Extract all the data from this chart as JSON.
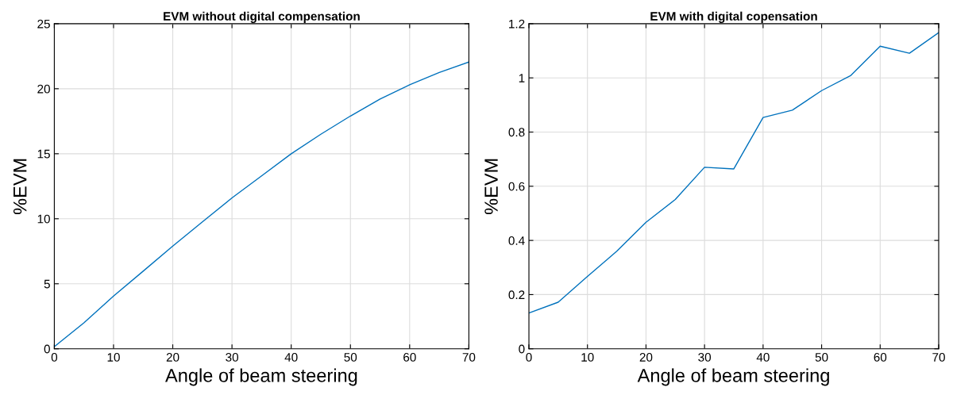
{
  "chart_data": [
    {
      "type": "line",
      "title": "EVM without digital compensation",
      "xlabel": "Angle of beam steering",
      "ylabel": "%EVM",
      "x": [
        0,
        5,
        10,
        15,
        20,
        25,
        30,
        35,
        40,
        45,
        50,
        55,
        60,
        65,
        70
      ],
      "series": [
        {
          "color": "#0072bd",
          "values": [
            0.17,
            2.0,
            4.05,
            5.97,
            7.9,
            9.76,
            11.6,
            13.3,
            15.0,
            16.5,
            17.9,
            19.2,
            20.3,
            21.25,
            22.05
          ]
        }
      ],
      "xlim": [
        0,
        70
      ],
      "xticks": [
        0,
        10,
        20,
        30,
        40,
        50,
        60,
        70
      ],
      "ylim": [
        0,
        25
      ],
      "yticks": [
        0,
        5,
        10,
        15,
        20,
        25
      ],
      "grid": true,
      "marker": "none",
      "line_style": "solid"
    },
    {
      "type": "line",
      "title": "EVM with digital copensation",
      "xlabel": "Angle of beam steering",
      "ylabel": "%EVM",
      "x": [
        0,
        5,
        10,
        15,
        20,
        25,
        30,
        35,
        40,
        45,
        50,
        55,
        60,
        65,
        70
      ],
      "series": [
        {
          "color": "#0072bd",
          "values": [
            0.132,
            0.172,
            0.267,
            0.36,
            0.467,
            0.551,
            0.67,
            0.664,
            0.854,
            0.881,
            0.953,
            1.009,
            1.117,
            1.091,
            1.167
          ]
        }
      ],
      "xlim": [
        0,
        70
      ],
      "xticks": [
        0,
        10,
        20,
        30,
        40,
        50,
        60,
        70
      ],
      "ylim": [
        0,
        1.2
      ],
      "yticks": [
        0,
        0.2,
        0.4,
        0.6,
        0.8,
        1,
        1.2
      ],
      "grid": true,
      "marker": "none",
      "line_style": "solid"
    }
  ]
}
